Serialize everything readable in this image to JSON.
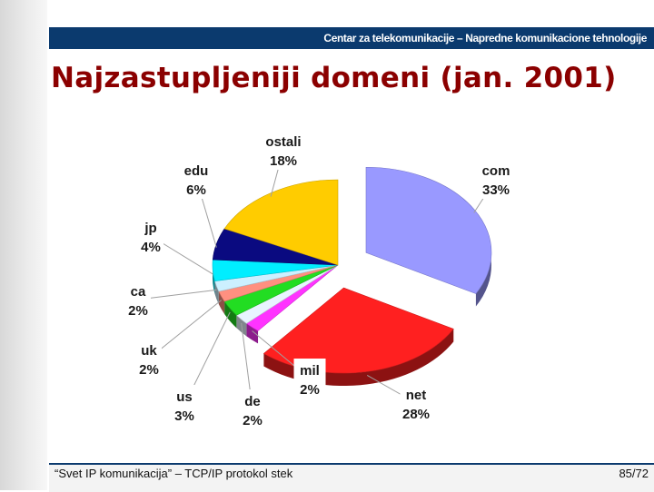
{
  "header": {
    "text": "Centar za telekomunikacije – Napredne komunikacione tehnologije"
  },
  "title": "Najzastupljeniji domeni (jan. 2001)",
  "footer": {
    "left": "“Svet IP komunikacija” – TCP/IP protokol stek",
    "page": "85/72"
  },
  "chart_data": {
    "type": "pie",
    "title": "Najzastupljeniji domeni (jan. 2001)",
    "slices": [
      {
        "name": "com",
        "label": "33%",
        "value": 33,
        "color": "#9999ff"
      },
      {
        "name": "net",
        "label": "28%",
        "value": 28,
        "color": "#ff2020"
      },
      {
        "name": "mil",
        "label": "2%",
        "value": 2,
        "color": "#ff33ff"
      },
      {
        "name": "de",
        "label": "2%",
        "value": 2,
        "color": "#e8f4ff"
      },
      {
        "name": "us",
        "label": "3%",
        "value": 3,
        "color": "#22dd22"
      },
      {
        "name": "uk",
        "label": "2%",
        "value": 2,
        "color": "#ff9080"
      },
      {
        "name": "ca",
        "label": "2%",
        "value": 2,
        "color": "#ccf0ff"
      },
      {
        "name": "jp",
        "label": "4%",
        "value": 4,
        "color": "#00eeff"
      },
      {
        "name": "edu",
        "label": "6%",
        "value": 6,
        "color": "#0a0a80"
      },
      {
        "name": "ostali",
        "label": "18%",
        "value": 18,
        "color": "#ffcc00"
      }
    ],
    "legend": "none",
    "labels": "callouts"
  }
}
